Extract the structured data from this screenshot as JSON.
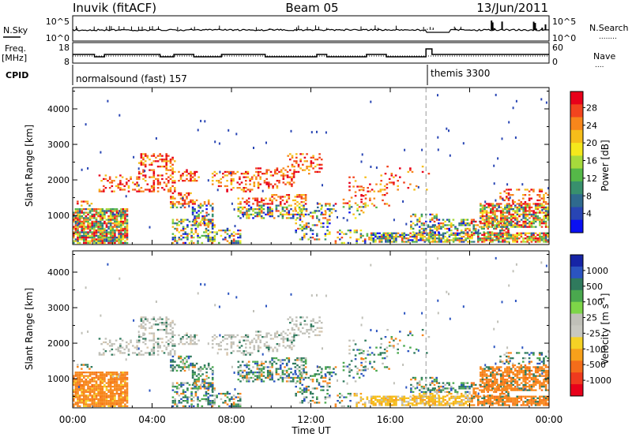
{
  "header": {
    "title_left": "Inuvik (fitACF)",
    "title_center": "Beam 05",
    "title_right": "13/Jun/2011"
  },
  "nsky_panel": {
    "label": "N.Sky",
    "left_ticks": [
      "10^5",
      "10^0"
    ],
    "right_ticks": [
      "10^5",
      "10^0"
    ],
    "right_label": "N.Search",
    "right_label_line": "........"
  },
  "freq_panel": {
    "label_line1": "Freq.",
    "label_line2": "[MHz]",
    "left_ticks": [
      "18",
      "8"
    ],
    "right_ticks": [
      "60",
      "0"
    ],
    "right_label": "Nave",
    "right_label_line": "...."
  },
  "cpid": {
    "label": "CPID",
    "mode1": "normalsound (fast) 157",
    "mode2": "themis 3300"
  },
  "x_axis": {
    "title": "Time UT",
    "ticks": [
      "00:00",
      "04:00",
      "08:00",
      "12:00",
      "16:00",
      "20:00",
      "00:00"
    ]
  },
  "chart_data": [
    {
      "type": "heatmap",
      "ylabel": "Slant Range [km]",
      "yticks": [
        1000,
        2000,
        3000,
        4000
      ],
      "ylim": [
        180,
        4600
      ],
      "xlim_hours": [
        0,
        24
      ],
      "colorbar": {
        "label": "Power [dB]",
        "labels": [
          "28",
          "24",
          "20",
          "16",
          "12",
          "8",
          "4"
        ],
        "colors": [
          "#e8001a",
          "#f2441e",
          "#f7861b",
          "#f5bd1a",
          "#f4e81c",
          "#a6da3c",
          "#55b848",
          "#38906d",
          "#2f6a8e",
          "#2845b4",
          "#0a10f2"
        ]
      }
    },
    {
      "type": "heatmap",
      "ylabel": "Slant Range [km]",
      "yticks": [
        1000,
        2000,
        3000,
        4000
      ],
      "ylim": [
        180,
        4600
      ],
      "xlim_hours": [
        0,
        24
      ],
      "colorbar": {
        "label": "Velocity [m s^-1]",
        "labels": [
          "1000",
          "500",
          "100",
          "25",
          "-25",
          "-100",
          "-500",
          "-1000"
        ],
        "colors": [
          "#1624a6",
          "#2b54c0",
          "#2f7a5d",
          "#4aa84e",
          "#7dd548",
          "#c0c0b8",
          "#c8c8c0",
          "#f5d225",
          "#f7a01b",
          "#f46d1a",
          "#ef3a1e",
          "#e8001a"
        ]
      }
    }
  ]
}
